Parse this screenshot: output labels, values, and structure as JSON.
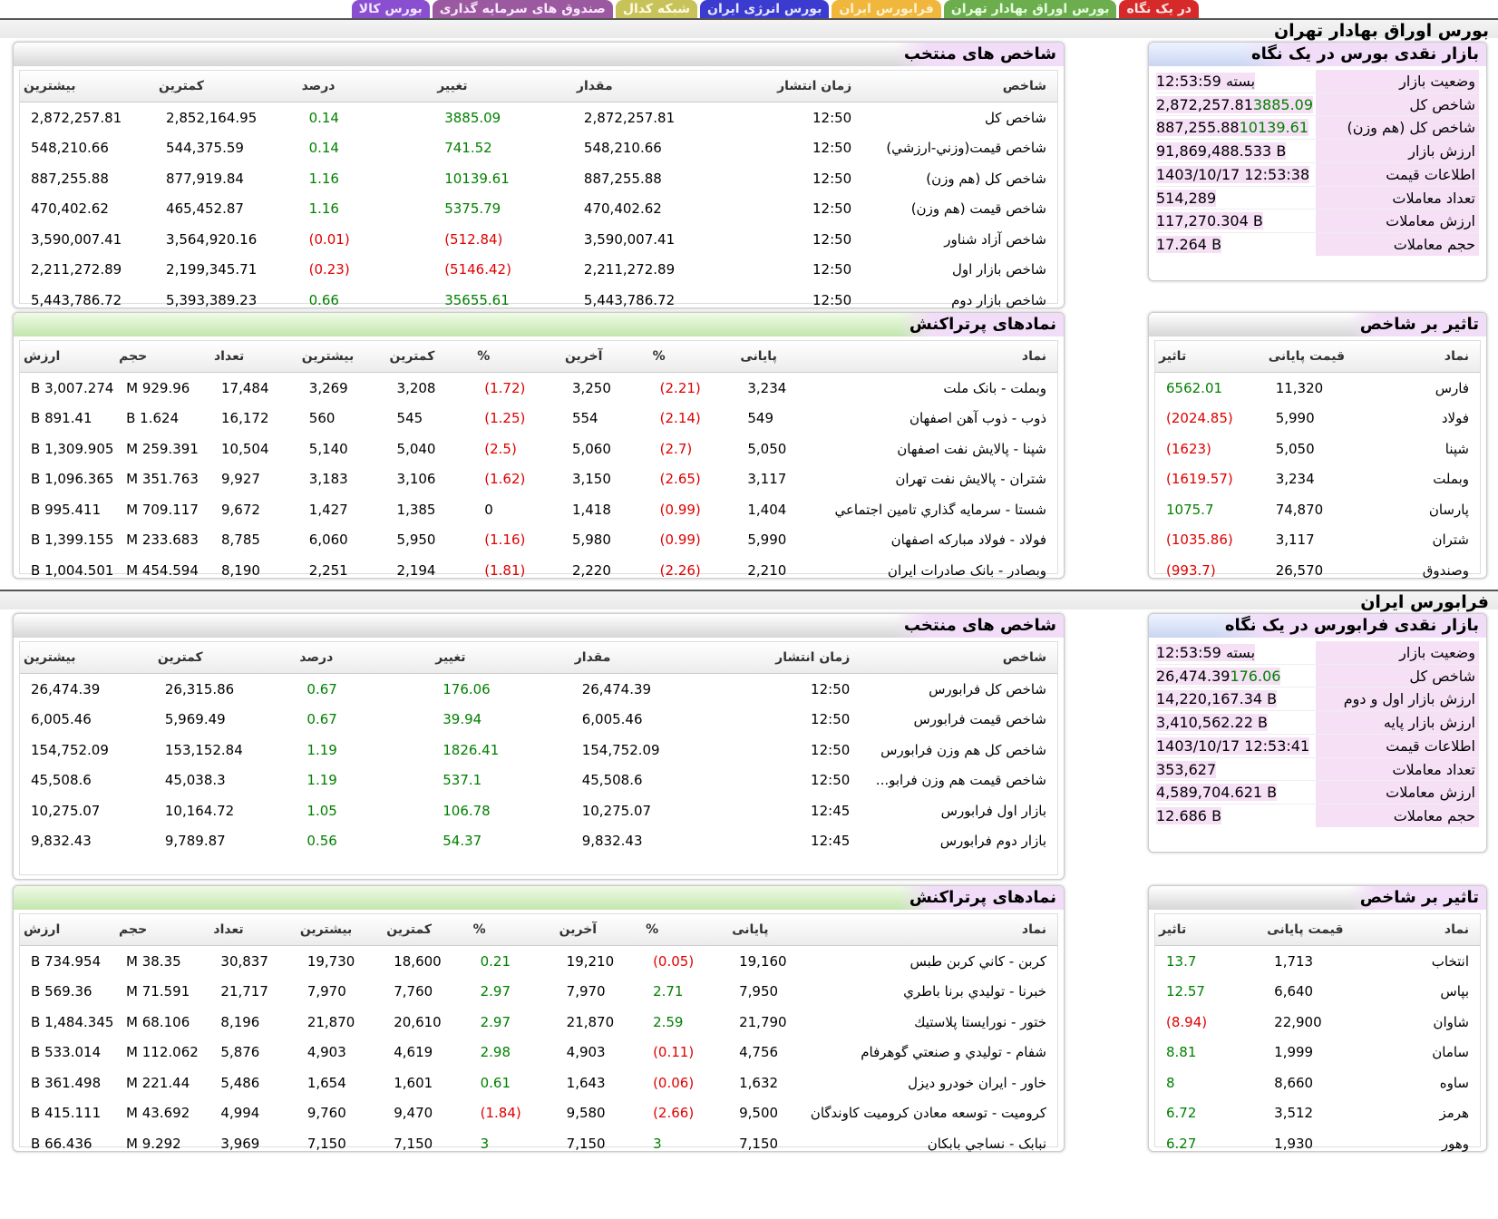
{
  "tabs": [
    {
      "label": "در یک نگاه",
      "color": "t-red"
    },
    {
      "label": "بورس اوراق بهادار تهران",
      "color": "t-green"
    },
    {
      "label": "فرابورس ایران",
      "color": "t-orange"
    },
    {
      "label": "بورس انرژی ایران",
      "color": "t-blue"
    },
    {
      "label": "شبکه کدال",
      "color": "t-olive"
    },
    {
      "label": "صندوق های سرمایه گذاری",
      "color": "t-mauve"
    },
    {
      "label": "بورس کالا",
      "color": "t-purple"
    }
  ],
  "tse": {
    "section_title": "بورس اوراق بهادار تهران",
    "glance": {
      "title": "بازار نقدی بورس در یک نگاه",
      "rows": [
        {
          "label": "وضعیت بازار",
          "value": "بسته 12:53:59",
          "change": ""
        },
        {
          "label": "شاخص کل",
          "value": "2,872,257.81",
          "change": "3885.09"
        },
        {
          "label": "شاخص کل (هم وزن)",
          "value": "887,255.88",
          "change": "10139.61"
        },
        {
          "label": "ارزش بازار",
          "value": "91,869,488.533 B",
          "change": ""
        },
        {
          "label": "اطلاعات قیمت",
          "value": "1403/10/17 12:53:38",
          "change": ""
        },
        {
          "label": "تعداد معاملات",
          "value": "514,289",
          "change": ""
        },
        {
          "label": "ارزش معاملات",
          "value": "117,270.304 B",
          "change": ""
        },
        {
          "label": "حجم معاملات",
          "value": "17.264 B",
          "change": ""
        }
      ]
    },
    "indices": {
      "title": "شاخص های منتخب",
      "headers": [
        "شاخص",
        "زمان انتشار",
        "مقدار",
        "تغییر",
        "درصد",
        "کمترین",
        "بیشترین"
      ],
      "rows": [
        {
          "name": "شاخص کل",
          "time": "12:50",
          "value": "2,872,257.81",
          "change": "3885.09",
          "pct": "0.14",
          "min": "2,852,164.95",
          "max": "2,872,257.81",
          "neg": false
        },
        {
          "name": "شاخص قیمت(وزني-ارزشي)",
          "time": "12:50",
          "value": "548,210.66",
          "change": "741.52",
          "pct": "0.14",
          "min": "544,375.59",
          "max": "548,210.66",
          "neg": false
        },
        {
          "name": "شاخص کل (هم وزن)",
          "time": "12:50",
          "value": "887,255.88",
          "change": "10139.61",
          "pct": "1.16",
          "min": "877,919.84",
          "max": "887,255.88",
          "neg": false
        },
        {
          "name": "شاخص قیمت (هم وزن)",
          "time": "12:50",
          "value": "470,402.62",
          "change": "5375.79",
          "pct": "1.16",
          "min": "465,452.87",
          "max": "470,402.62",
          "neg": false
        },
        {
          "name": "شاخص آزاد شناور",
          "time": "12:50",
          "value": "3,590,007.41",
          "change": "(512.84)",
          "pct": "(0.01)",
          "min": "3,564,920.16",
          "max": "3,590,007.41",
          "neg": true
        },
        {
          "name": "شاخص بازار اول",
          "time": "12:50",
          "value": "2,211,272.89",
          "change": "(5146.42)",
          "pct": "(0.23)",
          "min": "2,199,345.71",
          "max": "2,211,272.89",
          "neg": true
        },
        {
          "name": "شاخص بازار دوم",
          "time": "12:50",
          "value": "5,443,786.72",
          "change": "35655.61",
          "pct": "0.66",
          "min": "5,393,389.23",
          "max": "5,443,786.72",
          "neg": false
        }
      ]
    },
    "impact": {
      "title": "تاثیر بر شاخص",
      "headers": [
        "نماد",
        "قیمت پایانی",
        "تاثیر"
      ],
      "rows": [
        {
          "sym": "فارس",
          "price": "11,320",
          "impact": "6562.01",
          "neg": false
        },
        {
          "sym": "فولاد",
          "price": "5,990",
          "impact": "(2024.85)",
          "neg": true
        },
        {
          "sym": "شپنا",
          "price": "5,050",
          "impact": "(1623)",
          "neg": true
        },
        {
          "sym": "وبملت",
          "price": "3,234",
          "impact": "(1619.57)",
          "neg": true
        },
        {
          "sym": "پارسان",
          "price": "74,870",
          "impact": "1075.7",
          "neg": false
        },
        {
          "sym": "شتران",
          "price": "3,117",
          "impact": "(1035.86)",
          "neg": true
        },
        {
          "sym": "وصندوق",
          "price": "26,570",
          "impact": "(993.7)",
          "neg": true
        }
      ]
    },
    "active": {
      "title": "نمادهای پرتراکنش",
      "headers": [
        "نماد",
        "پایانی",
        "%",
        "آخرین",
        "%",
        "کمترین",
        "بیشترین",
        "تعداد",
        "حجم",
        "ارزش"
      ],
      "rows": [
        {
          "sym": "وبملت - بانک ملت",
          "close": "3,234",
          "cpct": "(2.21)",
          "cneg": true,
          "last": "3,250",
          "lpct": "(1.72)",
          "lneg": true,
          "min": "3,208",
          "max": "3,269",
          "count": "17,484",
          "vol": "929.96 M",
          "val": "3,007.274 B"
        },
        {
          "sym": "ذوب - ذوب آهن اصفهان",
          "close": "549",
          "cpct": "(2.14)",
          "cneg": true,
          "last": "554",
          "lpct": "(1.25)",
          "lneg": true,
          "min": "545",
          "max": "560",
          "count": "16,172",
          "vol": "1.624 B",
          "val": "891.41 B"
        },
        {
          "sym": "شپنا - پالايش نفت اصفهان",
          "close": "5,050",
          "cpct": "(2.7)",
          "cneg": true,
          "last": "5,060",
          "lpct": "(2.5)",
          "lneg": true,
          "min": "5,040",
          "max": "5,140",
          "count": "10,504",
          "vol": "259.391 M",
          "val": "1,309.905 B"
        },
        {
          "sym": "شتران - پالايش نفت تهران",
          "close": "3,117",
          "cpct": "(2.65)",
          "cneg": true,
          "last": "3,150",
          "lpct": "(1.62)",
          "lneg": true,
          "min": "3,106",
          "max": "3,183",
          "count": "9,927",
          "vol": "351.763 M",
          "val": "1,096.365 B"
        },
        {
          "sym": "شستا - سرمايه گذاري تامين اجتماعي",
          "close": "1,404",
          "cpct": "(0.99)",
          "cneg": true,
          "last": "1,418",
          "lpct": "0",
          "lneg": null,
          "min": "1,385",
          "max": "1,427",
          "count": "9,672",
          "vol": "709.117 M",
          "val": "995.411 B"
        },
        {
          "sym": "فولاد - فولاد مباركه اصفهان",
          "close": "5,990",
          "cpct": "(0.99)",
          "cneg": true,
          "last": "5,980",
          "lpct": "(1.16)",
          "lneg": true,
          "min": "5,950",
          "max": "6,060",
          "count": "8,785",
          "vol": "233.683 M",
          "val": "1,399.155 B"
        },
        {
          "sym": "وبصادر - بانک صادرات ايران",
          "close": "2,210",
          "cpct": "(2.26)",
          "cneg": true,
          "last": "2,220",
          "lpct": "(1.81)",
          "lneg": true,
          "min": "2,194",
          "max": "2,251",
          "count": "8,190",
          "vol": "454.594 M",
          "val": "1,004.501 B"
        }
      ]
    }
  },
  "ifb": {
    "section_title": "فرابورس ایران",
    "glance": {
      "title": "بازار نقدی فرابورس در یک نگاه",
      "rows": [
        {
          "label": "وضعیت بازار",
          "value": "بسته 12:53:59",
          "change": ""
        },
        {
          "label": "شاخص کل",
          "value": "26,474.39",
          "change": "176.06"
        },
        {
          "label": "ارزش بازار اول و دوم",
          "value": "14,220,167.34 B",
          "change": ""
        },
        {
          "label": "ارزش بازار پایه",
          "value": "3,410,562.22 B",
          "change": ""
        },
        {
          "label": "اطلاعات قیمت",
          "value": "1403/10/17 12:53:41",
          "change": ""
        },
        {
          "label": "تعداد معاملات",
          "value": "353,627",
          "change": ""
        },
        {
          "label": "ارزش معاملات",
          "value": "4,589,704.621 B",
          "change": ""
        },
        {
          "label": "حجم معاملات",
          "value": "12.686 B",
          "change": ""
        }
      ]
    },
    "indices": {
      "title": "شاخص های منتخب",
      "headers": [
        "شاخص",
        "زمان انتشار",
        "مقدار",
        "تغییر",
        "درصد",
        "کمترین",
        "بیشترین"
      ],
      "rows": [
        {
          "name": "شاخص كل فرابورس",
          "time": "12:50",
          "value": "26,474.39",
          "change": "176.06",
          "pct": "0.67",
          "min": "26,315.86",
          "max": "26,474.39",
          "neg": false
        },
        {
          "name": "شاخص قیمت فرابورس",
          "time": "12:50",
          "value": "6,005.46",
          "change": "39.94",
          "pct": "0.67",
          "min": "5,969.49",
          "max": "6,005.46",
          "neg": false
        },
        {
          "name": "شاخص کل هم وزن فرابورس",
          "time": "12:50",
          "value": "154,752.09",
          "change": "1826.41",
          "pct": "1.19",
          "min": "153,152.84",
          "max": "154,752.09",
          "neg": false
        },
        {
          "name": "شاخص قیمت هم وزن فرابو...",
          "time": "12:50",
          "value": "45,508.6",
          "change": "537.1",
          "pct": "1.19",
          "min": "45,038.3",
          "max": "45,508.6",
          "neg": false
        },
        {
          "name": "بازار اول فرابورس",
          "time": "12:45",
          "value": "10,275.07",
          "change": "106.78",
          "pct": "1.05",
          "min": "10,164.72",
          "max": "10,275.07",
          "neg": false
        },
        {
          "name": "بازار دوم فرابورس",
          "time": "12:45",
          "value": "9,832.43",
          "change": "54.37",
          "pct": "0.56",
          "min": "9,789.87",
          "max": "9,832.43",
          "neg": false
        }
      ]
    },
    "impact": {
      "title": "تاثیر بر شاخص",
      "headers": [
        "نماد",
        "قیمت پایانی",
        "تاثیر"
      ],
      "rows": [
        {
          "sym": "انتخاب",
          "price": "1,713",
          "impact": "13.7",
          "neg": false
        },
        {
          "sym": "بپاس",
          "price": "6,640",
          "impact": "12.57",
          "neg": false
        },
        {
          "sym": "شاوان",
          "price": "22,900",
          "impact": "(8.94)",
          "neg": true
        },
        {
          "sym": "سامان",
          "price": "1,999",
          "impact": "8.81",
          "neg": false
        },
        {
          "sym": "ساوه",
          "price": "8,660",
          "impact": "8",
          "neg": false
        },
        {
          "sym": "هرمز",
          "price": "3,512",
          "impact": "6.72",
          "neg": false
        },
        {
          "sym": "وهور",
          "price": "1,930",
          "impact": "6.27",
          "neg": false
        }
      ]
    },
    "active": {
      "title": "نمادهای پرتراکنش",
      "headers": [
        "نماد",
        "پایانی",
        "%",
        "آخرین",
        "%",
        "کمترین",
        "بیشترین",
        "تعداد",
        "حجم",
        "ارزش"
      ],
      "rows": [
        {
          "sym": "کربن - كاني كربن طبس",
          "close": "19,160",
          "cpct": "(0.05)",
          "cneg": true,
          "last": "19,210",
          "lpct": "0.21",
          "lneg": false,
          "min": "18,600",
          "max": "19,730",
          "count": "30,837",
          "vol": "38.35 M",
          "val": "734.954 B"
        },
        {
          "sym": "خبرنا - توليدي برنا باطري",
          "close": "7,950",
          "cpct": "2.71",
          "cneg": false,
          "last": "7,970",
          "lpct": "2.97",
          "lneg": false,
          "min": "7,760",
          "max": "7,970",
          "count": "21,717",
          "vol": "71.591 M",
          "val": "569.36 B"
        },
        {
          "sym": "ختور - نورايستا پلاستيك",
          "close": "21,790",
          "cpct": "2.59",
          "cneg": false,
          "last": "21,870",
          "lpct": "2.97",
          "lneg": false,
          "min": "20,610",
          "max": "21,870",
          "count": "8,196",
          "vol": "68.106 M",
          "val": "1,484.345 B"
        },
        {
          "sym": "شفام - توليدي و صنعتي گوهرفام",
          "close": "4,756",
          "cpct": "(0.11)",
          "cneg": true,
          "last": "4,903",
          "lpct": "2.98",
          "lneg": false,
          "min": "4,619",
          "max": "4,903",
          "count": "5,876",
          "vol": "112.062 M",
          "val": "533.014 B"
        },
        {
          "sym": "خاور - ايران خودرو ديزل",
          "close": "1,632",
          "cpct": "(0.06)",
          "cneg": true,
          "last": "1,643",
          "lpct": "0.61",
          "lneg": false,
          "min": "1,601",
          "max": "1,654",
          "count": "5,486",
          "vol": "221.44 M",
          "val": "361.498 B"
        },
        {
          "sym": "کرومیت - توسعه معادن كروميت كاوندگان",
          "close": "9,500",
          "cpct": "(2.66)",
          "cneg": true,
          "last": "9,580",
          "lpct": "(1.84)",
          "lneg": true,
          "min": "9,470",
          "max": "9,760",
          "count": "4,994",
          "vol": "43.692 M",
          "val": "415.111 B"
        },
        {
          "sym": "نبابک - نساجي بابكان",
          "close": "7,150",
          "cpct": "3",
          "cneg": false,
          "last": "7,150",
          "lpct": "3",
          "lneg": false,
          "min": "7,150",
          "max": "7,150",
          "count": "3,969",
          "vol": "9.292 M",
          "val": "66.436 B"
        }
      ]
    }
  }
}
